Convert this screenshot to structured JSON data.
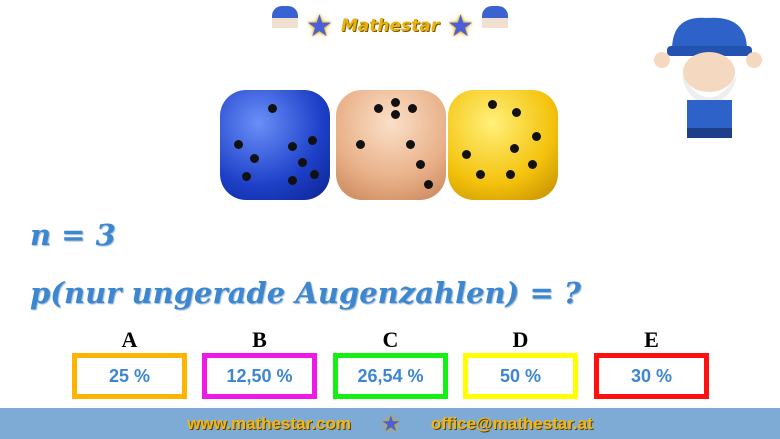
{
  "header": {
    "logo_text": "Mathestar"
  },
  "question": {
    "line1": "n = 3",
    "line2": "p(nur ungerade Augenzahlen) = ?"
  },
  "options": [
    {
      "letter": "A",
      "value": "25 %",
      "color": "#ffb400"
    },
    {
      "letter": "B",
      "value": "12,50 %",
      "color": "#f018e8"
    },
    {
      "letter": "C",
      "value": "26,54 %",
      "color": "#14f014"
    },
    {
      "letter": "D",
      "value": "50 %",
      "color": "#ffff00"
    },
    {
      "letter": "E",
      "value": "30 %",
      "color": "#ff1010"
    }
  ],
  "footer": {
    "website": "www.mathestar.com",
    "email": "office@mathestar.at"
  }
}
